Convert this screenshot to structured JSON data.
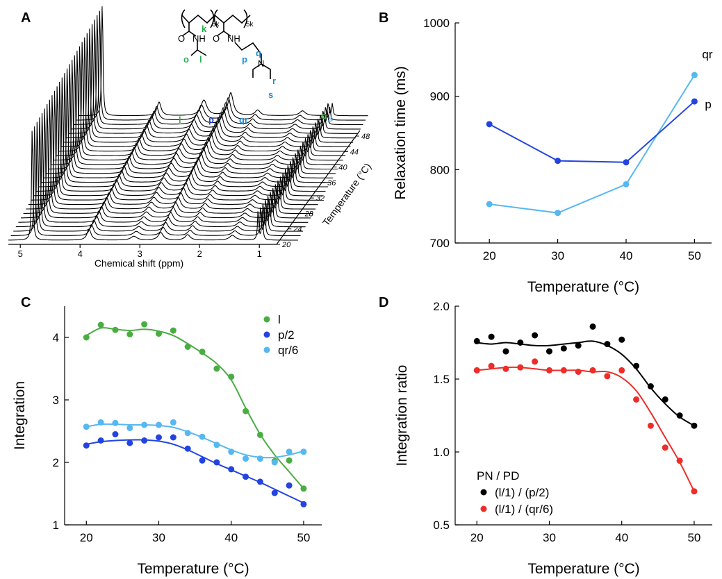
{
  "panel_letters": {
    "a": "A",
    "b": "B",
    "c": "C",
    "d": "D"
  },
  "colors": {
    "black": "#000000",
    "green": "#4aad43",
    "dark_blue": "#2344e0",
    "light_blue": "#56b8f0",
    "red": "#ee2c28",
    "struct_green": "#21b14b",
    "struct_blue": "#1a8fd8"
  },
  "structure": {
    "repeat_left": "5k",
    "repeat_right": "5k",
    "o_left": "O",
    "nh_left": "NH",
    "o_right": "O",
    "nh_right": "NH",
    "n_label": "N",
    "k": "k",
    "l": "l",
    "o": "o",
    "p": "p",
    "q": "q",
    "r": "r",
    "s": "s"
  },
  "nmr": {
    "peak_labels": {
      "l": "l",
      "p": "p",
      "qr": "qr",
      "o": "o",
      "s": "s"
    },
    "xlabel": "Chemical shift (ppm)",
    "x_ticks": [
      "5",
      "4",
      "3",
      "2",
      "1"
    ],
    "temperature_ticks": [
      "20",
      "24",
      "28",
      "32",
      "36",
      "40",
      "44",
      "48"
    ],
    "temperature_label": "Temperature (°C)"
  },
  "chart_data": [
    {
      "panel": "B",
      "type": "line",
      "xlabel": "Temperature (°C)",
      "ylabel": "Relaxation time (ms)",
      "xlim": [
        15,
        52.5
      ],
      "ylim": [
        700,
        1000
      ],
      "x_ticks": [
        20,
        30,
        40,
        50
      ],
      "y_ticks": [
        700,
        800,
        900,
        1000
      ],
      "grid": false,
      "series": [
        {
          "name": "qr",
          "color": "#56b8f0",
          "x": [
            20,
            30,
            40,
            50
          ],
          "y": [
            753,
            741,
            780,
            929
          ]
        },
        {
          "name": "p",
          "color": "#2344e0",
          "x": [
            20,
            30,
            40,
            50
          ],
          "y": [
            862,
            812,
            810,
            893
          ]
        }
      ]
    },
    {
      "panel": "C",
      "type": "scatter",
      "xlabel": "Temperature (°C)",
      "ylabel": "Integration",
      "xlim": [
        17,
        52.5
      ],
      "ylim": [
        1,
        4.5
      ],
      "x_ticks": [
        20,
        30,
        40,
        50
      ],
      "y_ticks": [
        1,
        2,
        3,
        4
      ],
      "legend": "top-right",
      "grid": false,
      "x": [
        20,
        22,
        24,
        26,
        28,
        30,
        32,
        34,
        36,
        38,
        40,
        42,
        44,
        46,
        48,
        50
      ],
      "series": [
        {
          "name": "l",
          "color": "#4aad43",
          "y": [
            4.0,
            4.2,
            4.12,
            4.05,
            4.21,
            4.06,
            4.11,
            3.85,
            3.77,
            3.5,
            3.37,
            2.82,
            2.44,
            2.02,
            2.03,
            1.58
          ],
          "fit": [
            4.03,
            4.15,
            4.13,
            4.11,
            4.13,
            4.1,
            4.03,
            3.9,
            3.75,
            3.58,
            3.32,
            2.87,
            2.45,
            2.12,
            1.85,
            1.58
          ]
        },
        {
          "name": "p/2",
          "color": "#2344e0",
          "y": [
            2.27,
            2.35,
            2.45,
            2.31,
            2.35,
            2.4,
            2.4,
            2.22,
            2.03,
            2.0,
            1.89,
            1.77,
            1.69,
            1.51,
            1.63,
            1.33
          ],
          "fit": [
            2.29,
            2.33,
            2.35,
            2.36,
            2.36,
            2.34,
            2.29,
            2.2,
            2.09,
            1.98,
            1.88,
            1.78,
            1.68,
            1.57,
            1.46,
            1.35
          ]
        },
        {
          "name": "qr/6",
          "color": "#56b8f0",
          "y": [
            2.57,
            2.64,
            2.63,
            2.55,
            2.6,
            2.6,
            2.64,
            2.47,
            2.41,
            2.28,
            2.17,
            2.06,
            2.06,
            2.0,
            2.17,
            2.17
          ],
          "fit": [
            2.57,
            2.61,
            2.61,
            2.6,
            2.6,
            2.59,
            2.56,
            2.49,
            2.4,
            2.3,
            2.2,
            2.12,
            2.08,
            2.08,
            2.12,
            2.18
          ]
        }
      ]
    },
    {
      "panel": "D",
      "type": "scatter",
      "xlabel": "Temperature (°C)",
      "ylabel": "Integration ratio",
      "xlim": [
        17,
        52.5
      ],
      "ylim": [
        0.5,
        2.0
      ],
      "x_ticks": [
        20,
        30,
        40,
        50
      ],
      "y_ticks": [
        0.5,
        1.0,
        1.5,
        2.0
      ],
      "legend_title": "PN / PD",
      "legend": "bottom-left",
      "grid": false,
      "x": [
        20,
        22,
        24,
        26,
        28,
        30,
        32,
        34,
        36,
        38,
        40,
        42,
        44,
        46,
        48,
        50
      ],
      "series": [
        {
          "name": "(l/1) / (p/2)",
          "color": "#000000",
          "y": [
            1.76,
            1.79,
            1.69,
            1.75,
            1.8,
            1.69,
            1.71,
            1.73,
            1.86,
            1.74,
            1.77,
            1.59,
            1.45,
            1.36,
            1.25,
            1.18
          ],
          "fit": [
            1.75,
            1.74,
            1.75,
            1.74,
            1.73,
            1.73,
            1.74,
            1.75,
            1.76,
            1.73,
            1.67,
            1.57,
            1.44,
            1.33,
            1.24,
            1.18
          ]
        },
        {
          "name": "(l/1) / (qr/6)",
          "color": "#ee2c28",
          "y": [
            1.56,
            1.59,
            1.57,
            1.58,
            1.62,
            1.56,
            1.56,
            1.55,
            1.56,
            1.52,
            1.56,
            1.36,
            1.18,
            1.03,
            0.94,
            0.73
          ],
          "fit": [
            1.56,
            1.57,
            1.58,
            1.58,
            1.57,
            1.56,
            1.56,
            1.56,
            1.55,
            1.55,
            1.51,
            1.42,
            1.27,
            1.1,
            0.93,
            0.73
          ]
        }
      ]
    }
  ]
}
